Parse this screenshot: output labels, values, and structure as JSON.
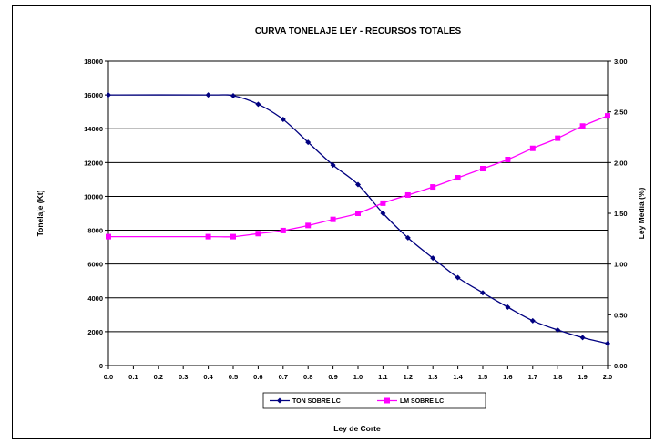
{
  "chart_data": {
    "type": "line",
    "title": "CURVA TONELAJE LEY - RECURSOS TOTALES",
    "xlabel": "Ley de Corte",
    "ylabel": "Tonelaje (Kt)",
    "y2label": "Ley Media (%)",
    "x": [
      0.0,
      0.4,
      0.5,
      0.6,
      0.7,
      0.8,
      0.9,
      1.0,
      1.1,
      1.2,
      1.3,
      1.4,
      1.5,
      1.6,
      1.7,
      1.8,
      1.9,
      2.0
    ],
    "x_ticks": [
      "0.0",
      "0.1",
      "0.2",
      "0.3",
      "0.4",
      "0.5",
      "0.6",
      "0.7",
      "0.8",
      "0.9",
      "1.0",
      "1.1",
      "1.2",
      "1.3",
      "1.4",
      "1.5",
      "1.6",
      "1.7",
      "1.8",
      "1.9",
      "2.0"
    ],
    "xlim": [
      0,
      2
    ],
    "ylim": [
      0,
      18000
    ],
    "y_ticks": [
      "0",
      "2000",
      "4000",
      "6000",
      "8000",
      "10000",
      "12000",
      "14000",
      "16000",
      "18000"
    ],
    "y2lim": [
      0,
      3
    ],
    "y2_ticks": [
      "0.00",
      "0.50",
      "1.00",
      "1.50",
      "2.00",
      "2.50",
      "3.00"
    ],
    "grid": "horizontal",
    "legend_position": "bottom",
    "series": [
      {
        "name": "TON SOBRE LC",
        "axis": "left",
        "color": "#000080",
        "marker": "diamond",
        "values": [
          16000,
          16000,
          15950,
          15450,
          14550,
          13200,
          11850,
          10700,
          9000,
          7550,
          6350,
          5200,
          4300,
          3450,
          2650,
          2100,
          1650,
          1300
        ]
      },
      {
        "name": "LM SOBRE LC",
        "axis": "right",
        "color": "#ff00ff",
        "marker": "square",
        "values": [
          1.27,
          1.27,
          1.27,
          1.3,
          1.33,
          1.38,
          1.44,
          1.5,
          1.6,
          1.68,
          1.76,
          1.85,
          1.94,
          2.03,
          2.14,
          2.24,
          2.36,
          2.46
        ]
      }
    ]
  }
}
